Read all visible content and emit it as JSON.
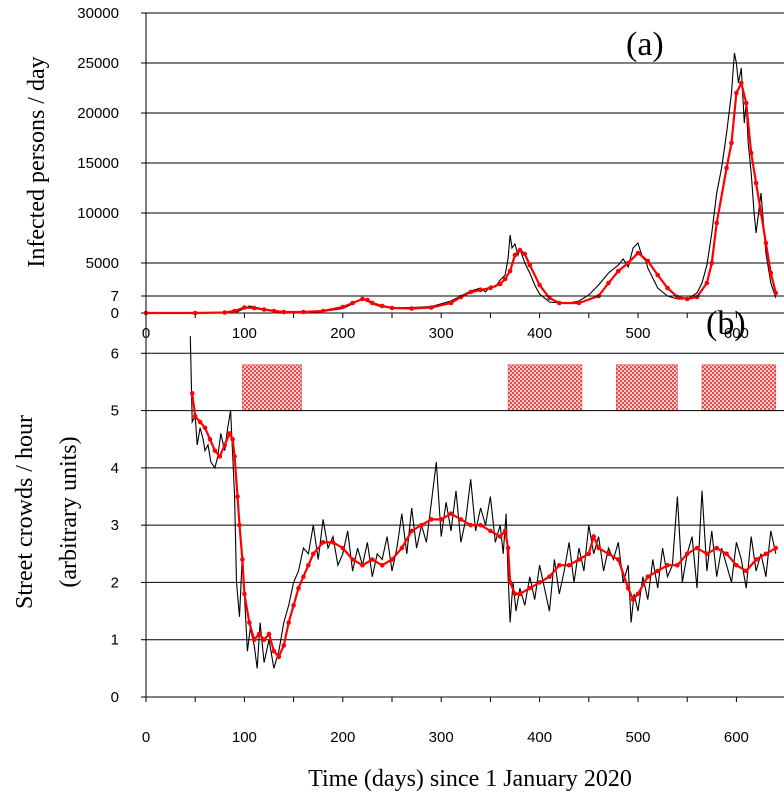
{
  "figure": {
    "xlabel": "Time (days) since 1 January 2020"
  },
  "chart_data": [
    {
      "type": "line",
      "panel_label": "(a)",
      "ylabel": "Infected persons / day",
      "xlim": [
        0,
        640
      ],
      "ylim": [
        0,
        30000
      ],
      "x_ticks": [
        0,
        100,
        200,
        300,
        400,
        500,
        600
      ],
      "y_ticks": [
        0,
        5000,
        10000,
        15000,
        20000,
        25000,
        30000
      ],
      "grid": "horizontal",
      "series": [
        {
          "style": "raw daily line",
          "color": "#000000",
          "x": [
            0,
            60,
            90,
            100,
            105,
            110,
            115,
            125,
            140,
            160,
            180,
            200,
            210,
            215,
            220,
            225,
            230,
            240,
            255,
            270,
            290,
            310,
            320,
            330,
            340,
            345,
            350,
            355,
            360,
            365,
            368,
            370,
            372,
            375,
            378,
            380,
            385,
            390,
            395,
            400,
            410,
            420,
            430,
            440,
            450,
            460,
            470,
            480,
            485,
            490,
            495,
            500,
            503,
            505,
            508,
            510,
            515,
            520,
            530,
            540,
            550,
            560,
            565,
            570,
            575,
            580,
            585,
            590,
            595,
            598,
            600,
            602,
            605,
            608,
            610,
            612,
            615,
            618,
            620,
            625,
            630,
            635,
            640
          ],
          "y": [
            0,
            0,
            0,
            450,
            700,
            600,
            500,
            300,
            150,
            100,
            150,
            450,
            900,
            1200,
            1400,
            1200,
            900,
            600,
            550,
            550,
            650,
            1200,
            1700,
            2200,
            2500,
            2100,
            2700,
            2600,
            3300,
            3800,
            5500,
            7800,
            6500,
            6900,
            5800,
            6400,
            5000,
            4000,
            2800,
            1900,
            1100,
            1000,
            1000,
            1200,
            1800,
            2800,
            4000,
            4800,
            5400,
            4600,
            6500,
            7000,
            6000,
            5500,
            5200,
            4500,
            3500,
            2500,
            1700,
            1400,
            1400,
            2000,
            3000,
            4800,
            8000,
            12000,
            14500,
            18000,
            22000,
            26000,
            25000,
            23000,
            24500,
            19000,
            21000,
            17000,
            14000,
            10000,
            8000,
            12000,
            6000,
            3000,
            1500
          ]
        },
        {
          "style": "moving average line with markers",
          "color": "#ff0000",
          "x": [
            0,
            50,
            80,
            90,
            100,
            110,
            120,
            130,
            140,
            160,
            180,
            200,
            210,
            220,
            225,
            230,
            240,
            250,
            270,
            290,
            310,
            320,
            330,
            340,
            350,
            360,
            365,
            370,
            375,
            380,
            385,
            390,
            400,
            410,
            420,
            440,
            460,
            470,
            480,
            490,
            500,
            510,
            520,
            530,
            540,
            550,
            560,
            570,
            575,
            580,
            590,
            595,
            600,
            605,
            610,
            615,
            620,
            625,
            630,
            635,
            640
          ],
          "y": [
            0,
            0,
            50,
            200,
            550,
            500,
            350,
            200,
            100,
            100,
            200,
            600,
            1000,
            1400,
            1300,
            1000,
            700,
            500,
            450,
            550,
            1000,
            1600,
            2100,
            2300,
            2500,
            2900,
            3400,
            4200,
            5800,
            6300,
            5900,
            4800,
            2800,
            1500,
            1000,
            1000,
            1700,
            3000,
            4200,
            5000,
            6000,
            5200,
            3800,
            2500,
            1600,
            1400,
            1600,
            3000,
            5000,
            9000,
            14500,
            17000,
            22000,
            23000,
            21000,
            16000,
            13000,
            10000,
            7000,
            4000,
            2000
          ]
        }
      ]
    },
    {
      "type": "line",
      "panel_label": "(b)",
      "ylabel_lines": [
        "Street crowds / hour",
        "(arbitrary units)"
      ],
      "xlim": [
        0,
        640
      ],
      "ylim": [
        0,
        7
      ],
      "x_ticks": [
        0,
        100,
        200,
        300,
        400,
        500,
        600
      ],
      "y_ticks": [
        0,
        1,
        2,
        3,
        4,
        5,
        6,
        7
      ],
      "grid": "horizontal",
      "highlight_periods": [
        {
          "start": 98,
          "end": 158
        },
        {
          "start": 368,
          "end": 443
        },
        {
          "start": 478,
          "end": 540
        },
        {
          "start": 565,
          "end": 640
        }
      ],
      "highlight_y_range": [
        5.0,
        5.8
      ],
      "highlight_color": "#ff8080",
      "series": [
        {
          "style": "raw daily line",
          "color": "#000000",
          "x": [
            45,
            47,
            50,
            52,
            55,
            58,
            60,
            63,
            66,
            70,
            73,
            76,
            80,
            83,
            86,
            90,
            92,
            95,
            98,
            100,
            103,
            106,
            110,
            113,
            116,
            120,
            125,
            130,
            135,
            140,
            145,
            150,
            155,
            160,
            165,
            170,
            175,
            180,
            185,
            190,
            195,
            200,
            205,
            210,
            215,
            220,
            225,
            230,
            235,
            240,
            245,
            250,
            255,
            260,
            265,
            270,
            275,
            280,
            285,
            290,
            295,
            300,
            305,
            310,
            315,
            320,
            325,
            330,
            335,
            340,
            345,
            350,
            355,
            360,
            363,
            366,
            368,
            370,
            373,
            376,
            380,
            385,
            390,
            395,
            400,
            405,
            410,
            415,
            420,
            425,
            430,
            435,
            440,
            445,
            450,
            455,
            460,
            465,
            470,
            475,
            480,
            485,
            490,
            493,
            496,
            500,
            505,
            510,
            515,
            520,
            525,
            530,
            535,
            540,
            545,
            550,
            555,
            560,
            565,
            570,
            575,
            580,
            585,
            590,
            595,
            600,
            605,
            610,
            615,
            620,
            625,
            630,
            635,
            640
          ],
          "y": [
            6.3,
            4.8,
            4.9,
            4.4,
            4.7,
            4.5,
            4.3,
            4.4,
            4.1,
            4.0,
            4.2,
            4.6,
            4.3,
            4.7,
            5.0,
            3.5,
            2.0,
            1.4,
            2.5,
            1.8,
            0.8,
            1.2,
            0.9,
            0.5,
            1.3,
            0.6,
            1.0,
            0.5,
            0.8,
            1.3,
            1.6,
            2.0,
            2.2,
            2.6,
            2.5,
            3.0,
            2.4,
            3.1,
            2.6,
            2.8,
            2.3,
            2.5,
            2.9,
            2.2,
            2.6,
            2.3,
            2.7,
            2.1,
            2.5,
            2.4,
            2.8,
            2.2,
            2.6,
            3.2,
            2.5,
            3.3,
            2.6,
            3.0,
            2.7,
            3.4,
            4.1,
            2.8,
            3.4,
            2.9,
            3.6,
            2.7,
            3.1,
            3.8,
            2.9,
            3.3,
            3.0,
            3.5,
            2.7,
            3.0,
            2.5,
            3.2,
            2.1,
            1.3,
            2.0,
            1.5,
            1.9,
            1.6,
            2.1,
            1.7,
            2.3,
            1.9,
            1.5,
            2.4,
            1.8,
            2.2,
            2.7,
            2.0,
            2.6,
            2.2,
            3.0,
            2.5,
            2.8,
            2.2,
            2.6,
            2.4,
            2.7,
            2.0,
            2.3,
            1.3,
            1.8,
            1.5,
            2.1,
            1.7,
            2.4,
            1.9,
            2.6,
            2.1,
            2.3,
            3.5,
            2.0,
            2.5,
            2.8,
            1.9,
            3.6,
            2.2,
            2.9,
            2.1,
            2.6,
            2.3,
            2.0,
            2.7,
            2.4,
            1.9,
            2.8,
            2.2,
            2.5,
            2.1,
            2.9,
            2.5
          ]
        },
        {
          "style": "moving average line with markers",
          "color": "#ff0000",
          "x": [
            47,
            50,
            55,
            60,
            65,
            70,
            75,
            80,
            85,
            88,
            90,
            93,
            95,
            98,
            100,
            105,
            110,
            115,
            120,
            125,
            130,
            135,
            140,
            145,
            150,
            155,
            160,
            165,
            170,
            180,
            190,
            200,
            210,
            220,
            230,
            240,
            250,
            260,
            270,
            280,
            290,
            300,
            310,
            320,
            330,
            340,
            350,
            360,
            365,
            368,
            370,
            375,
            380,
            390,
            400,
            410,
            420,
            430,
            440,
            450,
            455,
            460,
            470,
            480,
            490,
            495,
            500,
            510,
            520,
            530,
            540,
            550,
            560,
            570,
            580,
            590,
            600,
            610,
            620,
            630,
            640
          ],
          "y": [
            5.3,
            4.9,
            4.8,
            4.7,
            4.5,
            4.3,
            4.2,
            4.4,
            4.6,
            4.5,
            4.2,
            3.5,
            3.0,
            2.4,
            1.8,
            1.3,
            1.0,
            1.1,
            1.0,
            1.1,
            0.8,
            0.7,
            0.9,
            1.3,
            1.6,
            1.9,
            2.1,
            2.3,
            2.5,
            2.7,
            2.7,
            2.6,
            2.4,
            2.3,
            2.4,
            2.3,
            2.4,
            2.6,
            2.9,
            3.0,
            3.1,
            3.1,
            3.2,
            3.1,
            3.0,
            3.0,
            2.9,
            2.8,
            2.9,
            2.6,
            2.0,
            1.8,
            1.8,
            1.9,
            2.0,
            2.1,
            2.3,
            2.3,
            2.4,
            2.5,
            2.8,
            2.6,
            2.5,
            2.4,
            1.9,
            1.7,
            1.8,
            2.1,
            2.2,
            2.3,
            2.3,
            2.5,
            2.6,
            2.5,
            2.6,
            2.5,
            2.3,
            2.2,
            2.4,
            2.5,
            2.6
          ]
        }
      ]
    }
  ]
}
